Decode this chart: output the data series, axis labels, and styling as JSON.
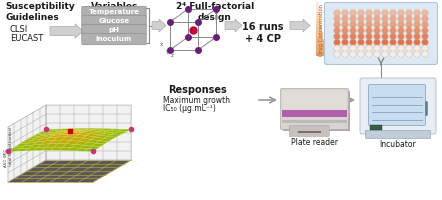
{
  "bg_color": "#ffffff",
  "susceptibility_title": "Susceptibility\nGuidelines",
  "variables_title": "Variables",
  "factorial_title": "2⁴ Full-factorial\ndesign",
  "runs_text": "16 runs\n+ 4 CP",
  "drug_conc_text": "Drug Concentration",
  "responses_title": "Responses",
  "response1": "Maximum growth",
  "response2": "IC₅₀ (µg.mL⁻¹)",
  "plate_reader_text": "Plate reader",
  "incubator_text": "Incubator",
  "clsi_text": "CLSI",
  "eucast_text": "EUCAST",
  "variables": [
    "Temperature",
    "Glucose",
    "pH",
    "Inoculum"
  ],
  "arrow_color": "#c8c8c8",
  "arrow_edge": "#aaaaaa",
  "cube_node_color": "#6b1d7a",
  "cube_center_color": "#cc0033",
  "cube_edge_color": "#888888",
  "plate_bg_color": "#dce8f4",
  "plate_border_color": "#b0c4d8",
  "reader_main": "#d8d4d0",
  "reader_stripe": "#b060a8",
  "reader_shadow": "#b8b0b0",
  "incubator_body": "#e8eef4",
  "incubator_border": "#b0bcc8",
  "incubator_window": "#c8ddf0",
  "incubator_base": "#c0ccd8"
}
